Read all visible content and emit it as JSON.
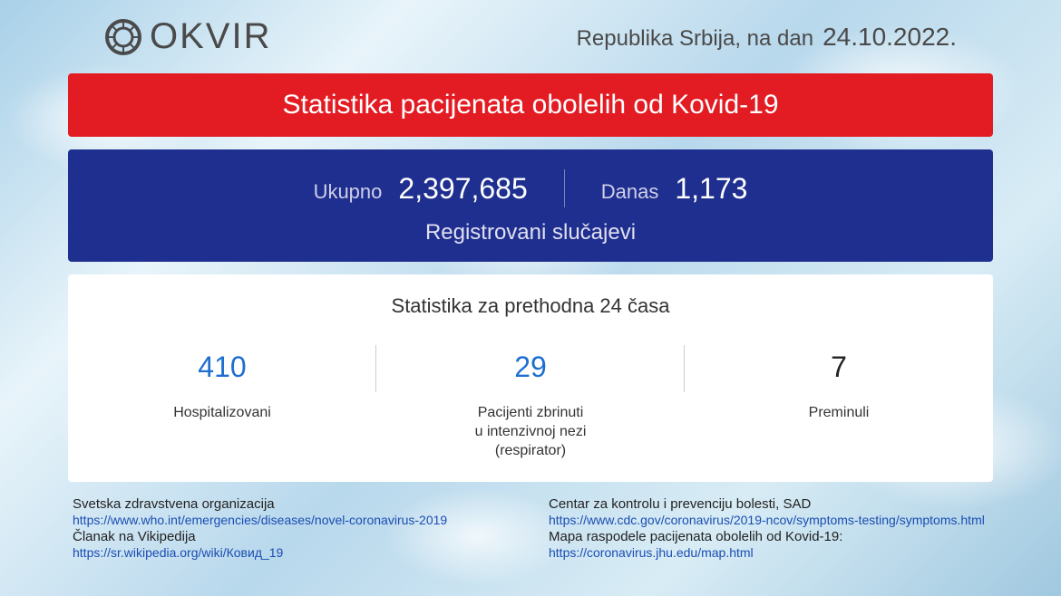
{
  "header": {
    "logo_text": "OKVIR",
    "country_prefix": "Republika Srbija, na dan",
    "date": "24.10.2022."
  },
  "banner": {
    "title": "Statistika pacijenata obolelih od Kovid-19"
  },
  "registered": {
    "total_label": "Ukupno",
    "total_value": "2,397,685",
    "today_label": "Danas",
    "today_value": "1,173",
    "subtitle": "Registrovani slučajevi"
  },
  "last24h": {
    "title": "Statistika za prethodna 24 časa",
    "stats": [
      {
        "value": "410",
        "label": "Hospitalizovani",
        "color": "blue"
      },
      {
        "value": "29",
        "label": "Pacijenti zbrinuti\nu intenzivnoj nezi\n(respirator)",
        "color": "blue"
      },
      {
        "value": "7",
        "label": "Preminuli",
        "color": "black"
      }
    ]
  },
  "footer": {
    "left": [
      {
        "label": "Svetska zdravstvena organizacija",
        "url": "https://www.who.int/emergencies/diseases/novel-coronavirus-2019"
      },
      {
        "label": "Članak na Vikipedija",
        "url": "https://sr.wikipedia.org/wiki/Ковид_19"
      }
    ],
    "right": [
      {
        "label": "Centar za kontrolu i prevenciju bolesti, SAD",
        "url": "https://www.cdc.gov/coronavirus/2019-ncov/symptoms-testing/symptoms.html"
      },
      {
        "label": "Mapa raspodele pacijenata obolelih od Kovid-19:",
        "url": "https://coronavirus.jhu.edu/map.html"
      }
    ]
  },
  "colors": {
    "red": "#e31b23",
    "blue_panel": "#1f2f8f",
    "stat_blue": "#1f6fd0",
    "link": "#1a4db3"
  }
}
